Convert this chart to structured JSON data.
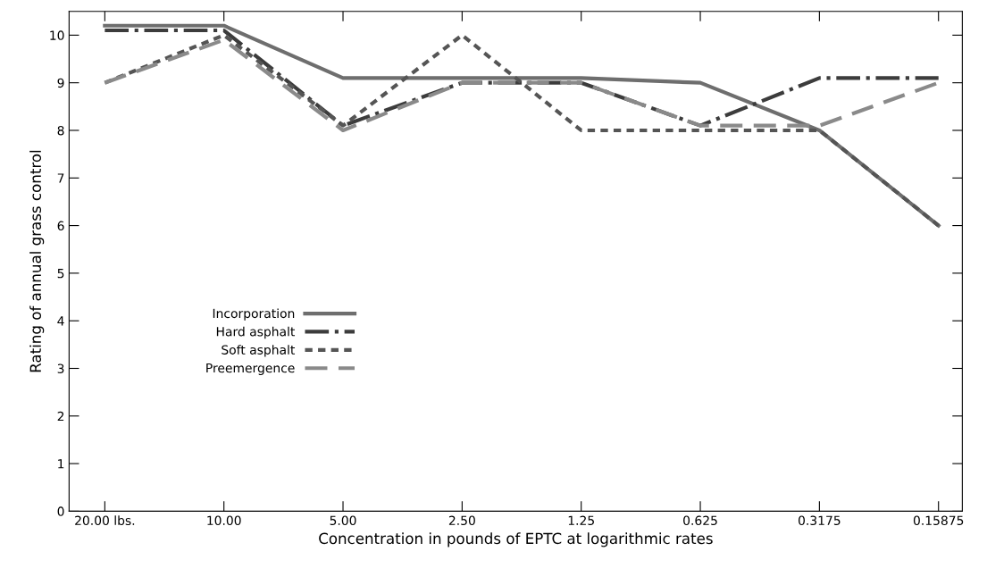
{
  "chart_data": {
    "type": "line",
    "xlabel": "Concentration in pounds of EPTC at logarithmic rates",
    "ylabel": "Rating of annual grass control",
    "categories": [
      "20.00 lbs.",
      "10.00",
      "5.00",
      "2.50",
      "1.25",
      "0.625",
      "0.3175",
      "0.15875"
    ],
    "ylim": [
      0,
      10.5
    ],
    "yticks": [
      0,
      1,
      2,
      3,
      4,
      5,
      6,
      7,
      8,
      9,
      10
    ],
    "legend": "bottom left",
    "grid": false,
    "marker": "none",
    "series": [
      {
        "name": "Incorporation",
        "color": "#6e6e6e",
        "line_style": "solid",
        "values": [
          10.2,
          10.2,
          9.1,
          9.1,
          9.1,
          9.0,
          8.0,
          6.0
        ]
      },
      {
        "name": "Hard asphalt",
        "color": "#3c3c3c",
        "line_style": "dashdot",
        "values": [
          10.1,
          10.1,
          8.1,
          9.0,
          9.0,
          8.1,
          9.1,
          9.1
        ]
      },
      {
        "name": "Soft asphalt",
        "color": "#555555",
        "line_style": "dotted",
        "values": [
          9.0,
          10.0,
          8.1,
          10.0,
          8.0,
          8.0,
          8.0,
          6.0
        ]
      },
      {
        "name": "Preemergence",
        "color": "#8a8a8a",
        "line_style": "dashed",
        "values": [
          9.0,
          9.9,
          8.0,
          9.0,
          9.0,
          8.1,
          8.1,
          9.0
        ]
      }
    ]
  }
}
